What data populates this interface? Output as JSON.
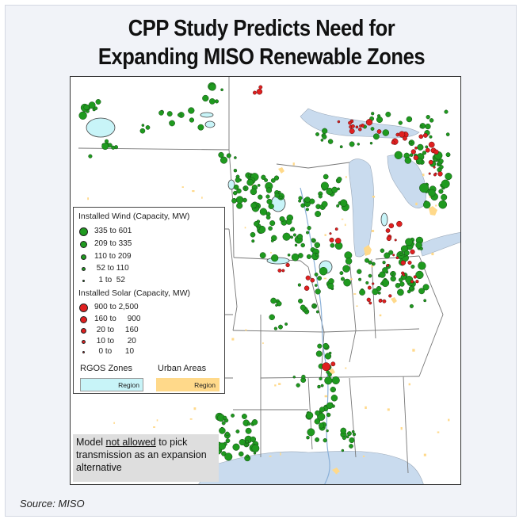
{
  "title": {
    "line1": "CPP Study Predicts Need for",
    "line2": "Expanding MISO Renewable Zones"
  },
  "legend": {
    "wind_title": "Installed Wind (Capacity, MW)",
    "wind_classes": [
      "335 to 601",
      "209 to 335",
      "110 to 209",
      " 52 to 110",
      "  1 to  52"
    ],
    "solar_title": "Installed Solar (Capacity, MW)",
    "solar_classes": [
      "900 to 2,500",
      "160 to     900",
      " 20 to     160",
      " 10 to      20",
      "  0 to      10"
    ],
    "rgos_label": "RGOS Zones",
    "urban_label": "Urban Areas",
    "region_label": "Region"
  },
  "note": {
    "part1": "Model ",
    "underlined": "not allowed",
    "part2": " to pick transmission as an expansion alternative"
  },
  "source": "Source: MISO",
  "colors": {
    "wind": "#1f9a1f",
    "solar": "#e02020",
    "rgos": "#c8f4f8",
    "urban": "#ffd98a",
    "lake": "#c9dbee",
    "background": "#f1f3f8"
  }
}
